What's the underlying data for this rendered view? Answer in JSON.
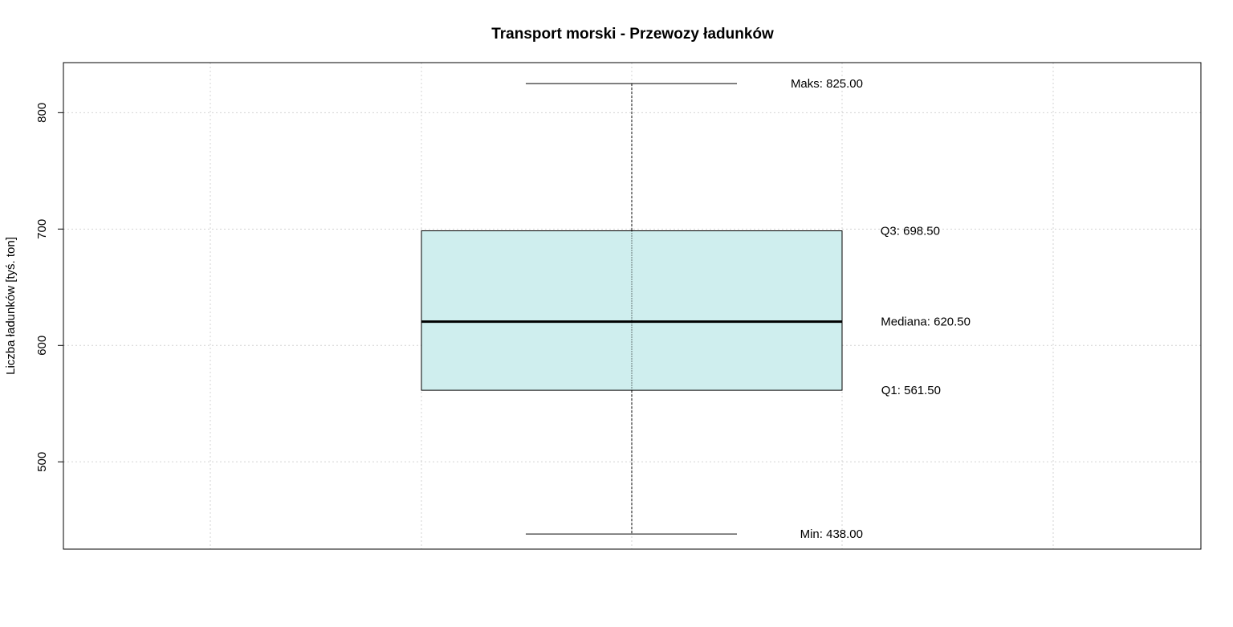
{
  "chart_data": {
    "type": "boxplot",
    "title": "Transport morski - Przewozy ładunków",
    "ylabel": "Liczba ładunków [tyś. ton]",
    "ylim": [
      425,
      843
    ],
    "yticks": [
      500,
      600,
      700,
      800
    ],
    "grid": true,
    "box_color": "#cfeeee",
    "stats": {
      "min": 438.0,
      "q1": 561.5,
      "median": 620.5,
      "q3": 698.5,
      "max": 825.0
    },
    "labels": {
      "max": "Maks: 825.00",
      "q3": "Q3: 698.50",
      "median": "Mediana: 620.50",
      "q1": "Q1: 561.50",
      "min": "Min: 438.00"
    }
  }
}
